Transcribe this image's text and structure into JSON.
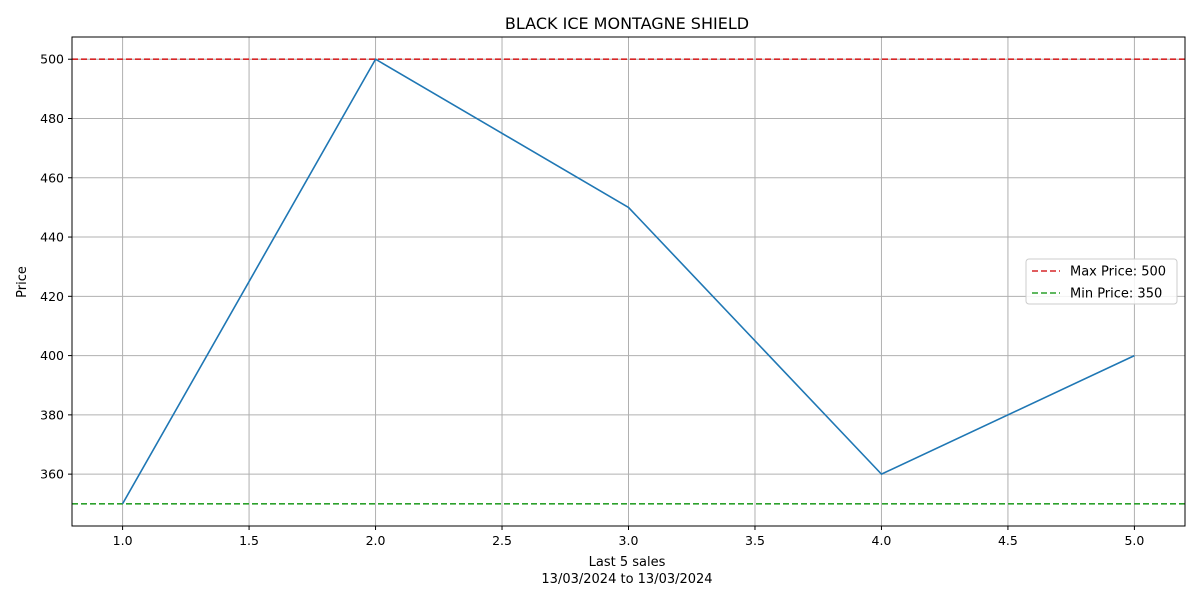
{
  "chart_data": {
    "type": "line",
    "title": "BLACK ICE MONTAGNE SHIELD",
    "xlabel": "Last 5 sales",
    "xlabel_sub": "13/03/2024 to 13/03/2024",
    "ylabel": "Price",
    "x": [
      1,
      2,
      3,
      4,
      5
    ],
    "series": [
      {
        "values": [
          350,
          500,
          450,
          360,
          400
        ],
        "color": "#1f77b4"
      }
    ],
    "reference_lines": [
      {
        "name": "Max Price: 500",
        "value": 500,
        "color": "#d62728",
        "style": "dashed"
      },
      {
        "name": "Min Price: 350",
        "value": 350,
        "color": "#2ca02c",
        "style": "dashed"
      }
    ],
    "xlim": [
      0.8,
      5.2
    ],
    "ylim": [
      342.5,
      507.5
    ],
    "xticks": [
      "1.0",
      "1.5",
      "2.0",
      "2.5",
      "3.0",
      "3.5",
      "4.0",
      "4.5",
      "5.0"
    ],
    "yticks": [
      "360",
      "380",
      "400",
      "420",
      "440",
      "460",
      "480",
      "500"
    ],
    "grid": true,
    "legend_position": "center-right"
  }
}
